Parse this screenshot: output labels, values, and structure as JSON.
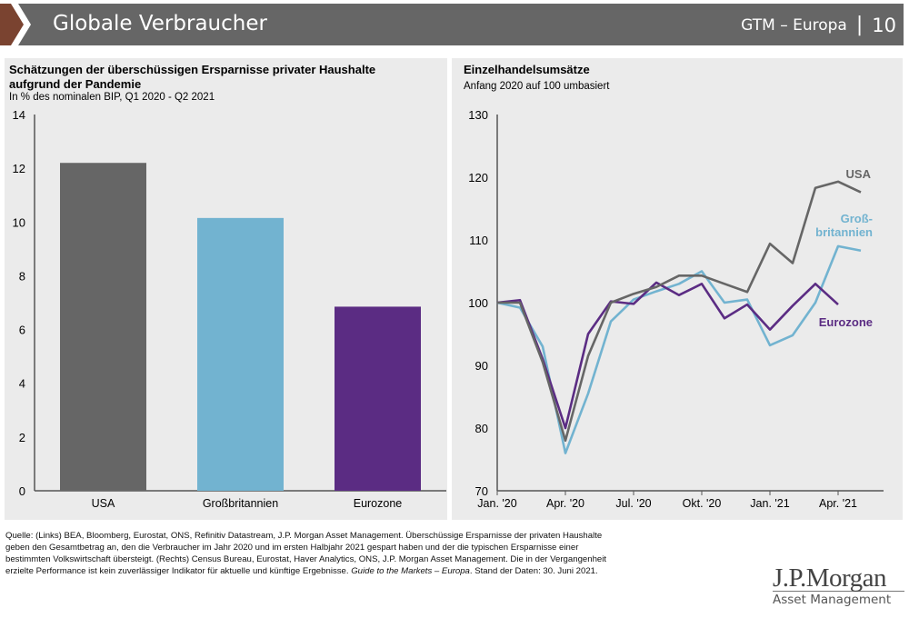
{
  "header": {
    "title": "Globale Verbraucher",
    "section": "GTM – Europa",
    "separator": "|",
    "page": "10"
  },
  "left": {
    "title_lines": [
      "Schätzungen der überschüssigen Ersparnisse privater Haushalte",
      "aufgrund der Pandemie"
    ],
    "subtitle": "In % des nominalen BIP, Q1 2020 - Q2 2021"
  },
  "right": {
    "title": "Einzelhandelsumsätze",
    "subtitle": "Anfang 2020 auf 100 umbasiert"
  },
  "chart_data": [
    {
      "type": "bar",
      "title": "Schätzungen der überschüssigen Ersparnisse privater Haushalte aufgrund der Pandemie",
      "ylabel": "In % des nominalen BIP, Q1 2020 - Q2 2021",
      "categories": [
        "USA",
        "Großbritannien",
        "Eurozone"
      ],
      "values": [
        12.2,
        10.15,
        6.85
      ],
      "colors": [
        "#666666",
        "#72b3d0",
        "#5b2c83"
      ],
      "ylim": [
        0,
        14
      ],
      "yticks": [
        0,
        2,
        4,
        6,
        8,
        10,
        12,
        14
      ],
      "grid": false
    },
    {
      "type": "line",
      "title": "Einzelhandelsumsätze",
      "ylabel": "Anfang 2020 auf 100 umbasiert",
      "ylim": [
        70,
        130
      ],
      "yticks": [
        70,
        80,
        90,
        100,
        110,
        120,
        130
      ],
      "xticks": [
        "Jan. '20",
        "Apr. '20",
        "Jul. '20",
        "Okt. '20",
        "Jan. '21",
        "Apr. '21"
      ],
      "xtick_month_index": [
        0,
        3,
        6,
        9,
        12,
        15
      ],
      "grid": false,
      "series": [
        {
          "name": "USA",
          "label_lines": [
            "USA"
          ],
          "color": "#666666",
          "values": [
            100,
            100,
            90.5,
            78,
            91.5,
            100,
            101.4,
            102.5,
            104.3,
            104.3,
            103,
            101.7,
            109.4,
            106.3,
            118.3,
            119.3,
            117.6
          ]
        },
        {
          "name": "Großbritannien",
          "label_lines": [
            "Groß-",
            "britannien"
          ],
          "color": "#72b3d0",
          "values": [
            100,
            99.2,
            93,
            76,
            85.5,
            97,
            100.5,
            101.8,
            103,
            105,
            100,
            100.5,
            93.2,
            94.8,
            100,
            109,
            108.3
          ]
        },
        {
          "name": "Eurozone",
          "label_lines": [
            "Eurozone"
          ],
          "color": "#5b2c83",
          "values": [
            100,
            100.4,
            91,
            80,
            95,
            100.2,
            99.8,
            103.2,
            101.2,
            103,
            97.5,
            99.7,
            95.7,
            99.5,
            103,
            99.7
          ]
        }
      ]
    }
  ],
  "footnote": {
    "line1": "Quelle: (Links) BEA, Bloomberg, Eurostat, ONS, Refinitiv Datastream, J.P. Morgan Asset Management. Überschüssige Ersparnisse der privaten Haushalte",
    "line2": "geben den Gesamtbetrag an, den die Verbraucher im Jahr 2020 und im ersten Halbjahr 2021 gespart haben und der die typischen Ersparnisse einer",
    "line3": "bestimmten Volkswirtschaft übersteigt. (Rechts) Census Bureau, Eurostat, Haver Analytics, ONS, J.P. Morgan Asset Management. Die in der Vergangenheit",
    "line4a": "erzielte Performance ist kein zuverlässiger Indikator für aktuelle und künftige Ergebnisse. ",
    "line4b": "Guide to the Markets – Europa",
    "line4c": ". Stand der Daten: 30. Juni 2021."
  },
  "logo": {
    "name": "J.P.Morgan",
    "sub": "Asset Management"
  }
}
